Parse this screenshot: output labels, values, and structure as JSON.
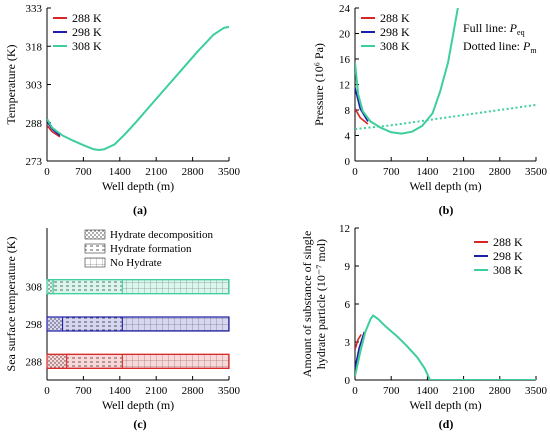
{
  "figure": {
    "colors": {
      "288": "#d62728",
      "298": "#1f1fa8",
      "308": "#3ccf9a",
      "axis": "#000000"
    }
  },
  "chart_data": [
    {
      "id": "a",
      "panel_label": "(a)",
      "type": "line",
      "xlabel": "Well depth (m)",
      "ylabel": "Temperature (K)",
      "xlim": [
        0,
        3500
      ],
      "ylim": [
        273,
        333
      ],
      "xticks": [
        "0",
        "700",
        "1400",
        "2100",
        "2800",
        "3500"
      ],
      "yticks": [
        "273",
        "288",
        "303",
        "318",
        "333"
      ],
      "legend_position": "top-left",
      "series": [
        {
          "name": "288 K",
          "key": "288",
          "points": [
            [
              0,
              287
            ],
            [
              100,
              284.5
            ],
            [
              250,
              282.5
            ]
          ]
        },
        {
          "name": "298 K",
          "key": "298",
          "points": [
            [
              0,
              288.5
            ],
            [
              100,
              285.5
            ],
            [
              250,
              283
            ]
          ]
        },
        {
          "name": "308 K",
          "key": "308",
          "points": [
            [
              0,
              289.5
            ],
            [
              100,
              286
            ],
            [
              300,
              283
            ],
            [
              500,
              281
            ],
            [
              700,
              279.2
            ],
            [
              900,
              277.6
            ],
            [
              1000,
              277.3
            ],
            [
              1100,
              277.6
            ],
            [
              1300,
              279.5
            ],
            [
              1500,
              283.5
            ],
            [
              1700,
              288
            ],
            [
              2000,
              295
            ],
            [
              2300,
              302
            ],
            [
              2600,
              309
            ],
            [
              2900,
              316
            ],
            [
              3200,
              322.5
            ],
            [
              3400,
              325.2
            ],
            [
              3500,
              325.6
            ]
          ]
        }
      ]
    },
    {
      "id": "b",
      "panel_label": "(b)",
      "type": "line",
      "xlabel": "Well depth (m)",
      "ylabel": "Pressure (10⁶ Pa)",
      "xlim": [
        0,
        3500
      ],
      "ylim": [
        0,
        24
      ],
      "xticks": [
        "0",
        "700",
        "1400",
        "2100",
        "2800",
        "3500"
      ],
      "yticks": [
        "0",
        "4",
        "8",
        "12",
        "16",
        "20",
        "24"
      ],
      "legend_position": "top-left",
      "annotations": [
        {
          "text": "Full line: ",
          "symbol": "P",
          "subscript": "eq"
        },
        {
          "text": "Dotted line: ",
          "symbol": "P",
          "subscript": "m"
        }
      ],
      "series": [
        {
          "name": "288 K",
          "key": "288",
          "points": [
            [
              0,
              8.2
            ],
            [
              100,
              6.8
            ],
            [
              250,
              5.8
            ]
          ]
        },
        {
          "name": "298 K",
          "key": "298",
          "points": [
            [
              0,
              11.5
            ],
            [
              100,
              8.2
            ],
            [
              250,
              6.2
            ]
          ]
        },
        {
          "name": "308 K",
          "key": "308",
          "points": [
            [
              0,
              15.5
            ],
            [
              60,
              10.5
            ],
            [
              150,
              7.8
            ],
            [
              300,
              6.2
            ],
            [
              500,
              5.2
            ],
            [
              700,
              4.5
            ],
            [
              900,
              4.3
            ],
            [
              1100,
              4.6
            ],
            [
              1300,
              5.5
            ],
            [
              1500,
              7.5
            ],
            [
              1650,
              11
            ],
            [
              1800,
              15.5
            ],
            [
              1900,
              20
            ],
            [
              2000,
              24.5
            ]
          ]
        },
        {
          "name": "Pm",
          "key": "308",
          "dotted": true,
          "points": [
            [
              0,
              5
            ],
            [
              700,
              5.6
            ],
            [
              1400,
              6.4
            ],
            [
              2100,
              7.2
            ],
            [
              2800,
              8
            ],
            [
              3500,
              8.8
            ]
          ]
        }
      ]
    },
    {
      "id": "c",
      "panel_label": "(c)",
      "type": "bar",
      "xlabel": "Well depth (m)",
      "ylabel": "Sea surface temperature (K)",
      "xlim": [
        0,
        3500
      ],
      "xticks": [
        "0",
        "700",
        "1400",
        "2100",
        "2800",
        "3500"
      ],
      "categories": [
        "308",
        "298",
        "288"
      ],
      "legend_position": "top-right",
      "legend": [
        "Hydrate decomposition",
        "Hydrate formation",
        "No Hydrate"
      ],
      "segments": [
        {
          "sst": "308",
          "decomposition": [
            0,
            120
          ],
          "formation": [
            120,
            1450
          ],
          "no_hydrate": [
            1450,
            3500
          ]
        },
        {
          "sst": "298",
          "decomposition": [
            0,
            300
          ],
          "formation": [
            300,
            1450
          ],
          "no_hydrate": [
            1450,
            3500
          ]
        },
        {
          "sst": "288",
          "decomposition": [
            0,
            380
          ],
          "formation": [
            380,
            1450
          ],
          "no_hydrate": [
            1450,
            3500
          ]
        }
      ]
    },
    {
      "id": "d",
      "panel_label": "(d)",
      "type": "line",
      "xlabel": "Well depth (m)",
      "ylabel_line1": "Amount of substance of single",
      "ylabel_line2": "hydrate particle (10⁻⁷ mol)",
      "xlim": [
        0,
        3500
      ],
      "ylim": [
        0,
        12
      ],
      "xticks": [
        "0",
        "700",
        "1400",
        "2100",
        "2800",
        "3500"
      ],
      "yticks": [
        "0",
        "3",
        "6",
        "9",
        "12"
      ],
      "legend_position": "top-right",
      "series": [
        {
          "name": "288 K",
          "key": "288",
          "points": [
            [
              0,
              2.4
            ],
            [
              60,
              3.2
            ],
            [
              120,
              3.6
            ]
          ]
        },
        {
          "name": "298 K",
          "key": "298",
          "points": [
            [
              0,
              0.9
            ],
            [
              80,
              2.5
            ],
            [
              180,
              3.8
            ]
          ]
        },
        {
          "name": "308 K",
          "key": "308",
          "points": [
            [
              0,
              0.3
            ],
            [
              100,
              2.2
            ],
            [
              200,
              3.8
            ],
            [
              300,
              4.8
            ],
            [
              350,
              5.1
            ],
            [
              450,
              4.8
            ],
            [
              600,
              4.2
            ],
            [
              800,
              3.5
            ],
            [
              1000,
              2.7
            ],
            [
              1200,
              1.8
            ],
            [
              1350,
              0.9
            ],
            [
              1450,
              0
            ],
            [
              3500,
              0
            ]
          ]
        }
      ]
    }
  ]
}
